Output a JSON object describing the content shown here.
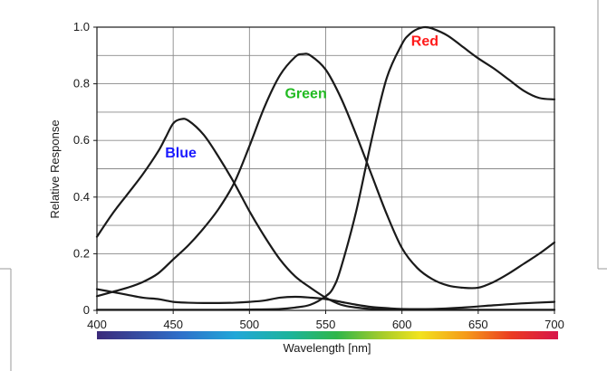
{
  "chart_data": {
    "type": "line",
    "title": "",
    "xlabel": "Wavelength [nm]",
    "ylabel": "Relative Response",
    "xlim": [
      400,
      700
    ],
    "ylim": [
      0,
      1.0
    ],
    "x_ticks": [
      "400",
      "450",
      "500",
      "550",
      "600",
      "650",
      "700"
    ],
    "y_ticks": [
      "0",
      "0.2",
      "0.4",
      "0.6",
      "0.8",
      "1.0"
    ],
    "grid": true,
    "spectrum_bar": true,
    "series": [
      {
        "name": "Blue",
        "color": "#1a1a1a",
        "label_color": "#1a1aff",
        "label_at": [
          455,
          0.54
        ],
        "x": [
          400,
          410,
          420,
          430,
          440,
          445,
          450,
          455,
          460,
          470,
          480,
          490,
          500,
          510,
          520,
          530,
          540,
          550,
          560,
          570,
          580,
          590,
          600,
          620,
          640,
          660,
          680,
          700
        ],
        "y": [
          0.075,
          0.065,
          0.055,
          0.045,
          0.04,
          0.035,
          0.03,
          0.028,
          0.027,
          0.026,
          0.026,
          0.027,
          0.03,
          0.035,
          0.045,
          0.048,
          0.045,
          0.04,
          0.03,
          0.02,
          0.012,
          0.008,
          0.005,
          0.005,
          0.01,
          0.018,
          0.025,
          0.03
        ]
      },
      {
        "name": "Blue_curve_main",
        "color": "#1a1a1a",
        "x": [
          400,
          410,
          420,
          430,
          440,
          445,
          450,
          455,
          460,
          470,
          480,
          490,
          500,
          510,
          520,
          530,
          540,
          550,
          560,
          570,
          580,
          590,
          600,
          620,
          640,
          660,
          680,
          700
        ],
        "y": [
          0.26,
          0.34,
          0.41,
          0.48,
          0.56,
          0.61,
          0.66,
          0.675,
          0.67,
          0.62,
          0.54,
          0.45,
          0.35,
          0.26,
          0.18,
          0.12,
          0.08,
          0.045,
          0.02,
          0.01,
          0.005,
          0.003,
          0.002,
          0.002,
          0.002,
          0.002,
          0.002,
          0.002
        ]
      },
      {
        "name": "Green",
        "color": "#1a1a1a",
        "label_color": "#22bb22",
        "label_at": [
          537,
          0.75
        ],
        "x": [
          400,
          410,
          420,
          430,
          440,
          450,
          460,
          470,
          480,
          490,
          500,
          510,
          520,
          530,
          535,
          540,
          550,
          560,
          570,
          580,
          590,
          600,
          610,
          620,
          630,
          640,
          650,
          660,
          670,
          680,
          690,
          700
        ],
        "y": [
          0.05,
          0.065,
          0.08,
          0.1,
          0.13,
          0.18,
          0.23,
          0.29,
          0.36,
          0.45,
          0.58,
          0.72,
          0.83,
          0.895,
          0.905,
          0.9,
          0.85,
          0.75,
          0.62,
          0.48,
          0.34,
          0.22,
          0.15,
          0.11,
          0.088,
          0.08,
          0.08,
          0.1,
          0.13,
          0.165,
          0.2,
          0.24
        ]
      },
      {
        "name": "Red",
        "color": "#1a1a1a",
        "label_color": "#ff1a1a",
        "label_at": [
          615,
          0.935
        ],
        "x": [
          400,
          420,
          440,
          460,
          480,
          500,
          520,
          530,
          540,
          550,
          555,
          560,
          570,
          580,
          590,
          600,
          605,
          610,
          615,
          620,
          630,
          640,
          650,
          660,
          670,
          680,
          690,
          700
        ],
        "y": [
          0.002,
          0.002,
          0.002,
          0.002,
          0.002,
          0.003,
          0.005,
          0.01,
          0.02,
          0.05,
          0.08,
          0.15,
          0.35,
          0.6,
          0.82,
          0.94,
          0.975,
          0.993,
          1.0,
          0.995,
          0.97,
          0.93,
          0.89,
          0.855,
          0.815,
          0.775,
          0.75,
          0.745
        ]
      }
    ]
  }
}
